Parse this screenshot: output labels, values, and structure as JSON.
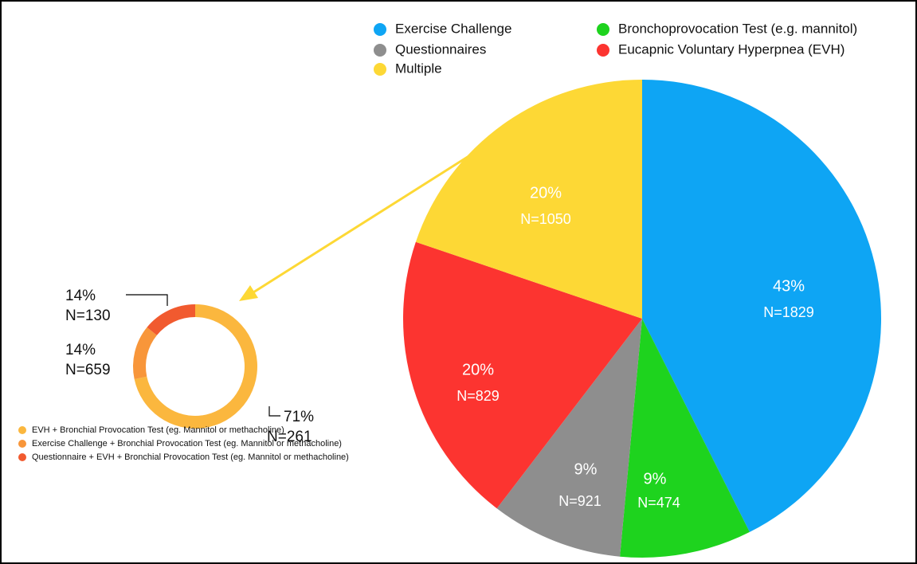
{
  "chart_data": [
    {
      "type": "pie",
      "categories": [
        "Exercise Challenge",
        "Bronchoprovocation Test (e.g. mannitol)",
        "Questionnaires",
        "Eucapnic Voluntary Hyperpnea (EVH)",
        "Multiple"
      ],
      "values": [
        43,
        9,
        9,
        20,
        20
      ],
      "value_labels": [
        "43%",
        "9%",
        "9%",
        "20%",
        "20%"
      ],
      "count_labels": [
        "N=1829",
        "N=474",
        "N=921",
        "N=829",
        "N=1050"
      ],
      "colors": [
        "#0ea5f4",
        "#1ed31e",
        "#8e8e8e",
        "#fc3430",
        "#fdd835"
      ]
    },
    {
      "type": "donut",
      "categories": [
        "EVH + Bronchial Provocation Test (eg. Mannitol or methacholine)",
        "Exercise Challenge + Bronchial Provocation Test (eg. Mannitol or methacholine)",
        "Questionnaire + EVH + Bronchial Provocation Test (eg. Mannitol or methacholine)"
      ],
      "values": [
        71,
        14,
        14
      ],
      "value_labels": [
        "71%",
        "14%",
        "14%"
      ],
      "count_labels": [
        "N=261",
        "N=659",
        "N=130"
      ],
      "colors": [
        "#fbb73e",
        "#f8963a",
        "#f15a2f"
      ]
    }
  ]
}
